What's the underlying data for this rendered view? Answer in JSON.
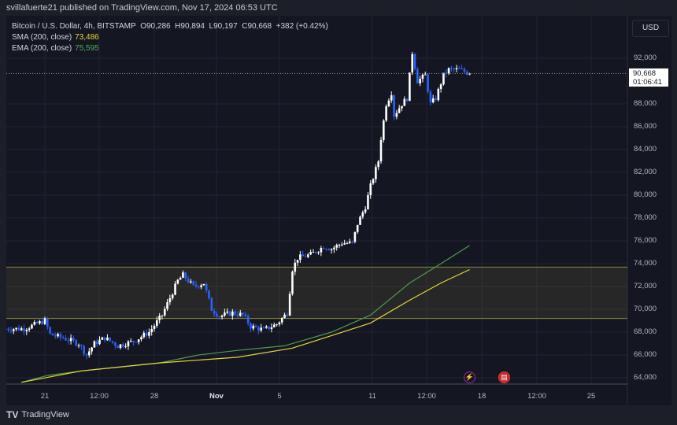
{
  "published": "svillafuerte21 published on TradingView.com, Nov 17, 2024 06:53 UTC",
  "legend": {
    "symbol": "Bitcoin / U.S. Dollar, 4h, BITSTAMP",
    "open": "O90,286",
    "high": "H90,894",
    "low": "L90,197",
    "close": "C90,668",
    "change": "+382 (+0.42%)",
    "sma_label": "SMA (200, close)",
    "sma_value": "73,486",
    "ema_label": "EMA (200, close)",
    "ema_value": "75,595"
  },
  "currency": "USD",
  "last_price": {
    "value": "90,668",
    "countdown": "01:06:41"
  },
  "y_ticks": [
    "92,000",
    "88,000",
    "86,000",
    "84,000",
    "82,000",
    "80,000",
    "78,000",
    "76,000",
    "74,000",
    "72,000",
    "70,000",
    "68,000",
    "66,000",
    "64,000"
  ],
  "x_ticks": [
    "21",
    "12:00",
    "28",
    "Nov",
    "5",
    "11",
    "12:00",
    "18",
    "12:00",
    "25"
  ],
  "brand": "TradingView",
  "colors": {
    "up": "#ffffff",
    "down": "#2962ff",
    "sma": "#e6d63b",
    "ema": "#4f9a4f",
    "zone": "#8c8a3c",
    "background": "#141722"
  },
  "events": [
    {
      "icon": "lightning-icon",
      "color": "#9c27b0"
    },
    {
      "icon": "us-flag-icon",
      "color": "#e53935"
    }
  ],
  "chart_data": {
    "type": "candlestick",
    "interval": "4h",
    "ylim": [
      63500,
      94000
    ],
    "price_path": [
      [
        "2024-10-18T12:00",
        68300
      ],
      [
        "2024-10-19T16:00",
        68300
      ],
      [
        "2024-10-21T00:00",
        69000
      ],
      [
        "2024-10-21T08:00",
        67800
      ],
      [
        "2024-10-22T04:00",
        67500
      ],
      [
        "2024-10-23T04:00",
        67000
      ],
      [
        "2024-10-23T16:00",
        66000
      ],
      [
        "2024-10-24T04:00",
        67000
      ],
      [
        "2024-10-24T20:00",
        67500
      ],
      [
        "2024-10-25T16:00",
        66800
      ],
      [
        "2024-10-26T16:00",
        67200
      ],
      [
        "2024-10-27T16:00",
        68000
      ],
      [
        "2024-10-28T12:00",
        69500
      ],
      [
        "2024-10-29T00:00",
        71000
      ],
      [
        "2024-10-29T12:00",
        72500
      ],
      [
        "2024-10-29T20:00",
        73000
      ],
      [
        "2024-10-30T12:00",
        72000
      ],
      [
        "2024-10-31T04:00",
        72300
      ],
      [
        "2024-10-31T16:00",
        70000
      ],
      [
        "2024-11-01T04:00",
        69400
      ],
      [
        "2024-11-02T00:00",
        69700
      ],
      [
        "2024-11-02T16:00",
        69500
      ],
      [
        "2024-11-03T04:00",
        68500
      ],
      [
        "2024-11-04T00:00",
        68200
      ],
      [
        "2024-11-04T20:00",
        68700
      ],
      [
        "2024-11-05T12:00",
        69700
      ],
      [
        "2024-11-05T20:00",
        73500
      ],
      [
        "2024-11-06T04:00",
        74500
      ],
      [
        "2024-11-07T00:00",
        74800
      ],
      [
        "2024-11-07T20:00",
        75500
      ],
      [
        "2024-11-08T08:00",
        75300
      ],
      [
        "2024-11-09T00:00",
        75800
      ],
      [
        "2024-11-09T16:00",
        75800
      ],
      [
        "2024-11-10T00:00",
        77500
      ],
      [
        "2024-11-10T12:00",
        79000
      ],
      [
        "2024-11-10T20:00",
        80800
      ],
      [
        "2024-11-11T08:00",
        83000
      ],
      [
        "2024-11-11T12:00",
        85000
      ],
      [
        "2024-11-11T20:00",
        88000
      ],
      [
        "2024-11-12T04:00",
        89000
      ],
      [
        "2024-11-12T08:00",
        87000
      ],
      [
        "2024-11-12T20:00",
        88000
      ],
      [
        "2024-11-13T04:00",
        88500
      ],
      [
        "2024-11-13T12:00",
        92500
      ],
      [
        "2024-11-13T20:00",
        90000
      ],
      [
        "2024-11-14T08:00",
        90500
      ],
      [
        "2024-11-14T16:00",
        88000
      ],
      [
        "2024-11-15T00:00",
        88500
      ],
      [
        "2024-11-15T12:00",
        90500
      ],
      [
        "2024-11-15T20:00",
        91000
      ],
      [
        "2024-11-16T12:00",
        91000
      ],
      [
        "2024-11-17T04:00",
        90668
      ]
    ],
    "sma_200": [
      [
        "2024-10-19T12:00",
        63600
      ],
      [
        "2024-10-23T08:00",
        64600
      ],
      [
        "2024-10-28T08:00",
        65300
      ],
      [
        "2024-11-02T08:00",
        65800
      ],
      [
        "2024-11-05T20:00",
        66600
      ],
      [
        "2024-11-08T08:00",
        67700
      ],
      [
        "2024-11-10T20:00",
        68800
      ],
      [
        "2024-11-13T08:00",
        70800
      ],
      [
        "2024-11-15T08:00",
        72300
      ],
      [
        "2024-11-17T04:00",
        73486
      ]
    ],
    "ema_200": [
      [
        "2024-10-19T12:00",
        63600
      ],
      [
        "2024-10-21T04:00",
        64200
      ],
      [
        "2024-10-23T08:00",
        64600
      ],
      [
        "2024-10-28T08:00",
        65300
      ],
      [
        "2024-10-30T20:00",
        66000
      ],
      [
        "2024-11-02T08:00",
        66400
      ],
      [
        "2024-11-05T08:00",
        66800
      ],
      [
        "2024-11-08T08:00",
        68000
      ],
      [
        "2024-11-10T20:00",
        69500
      ],
      [
        "2024-11-13T08:00",
        72300
      ],
      [
        "2024-11-15T08:00",
        74000
      ],
      [
        "2024-11-17T04:00",
        75595
      ]
    ],
    "zone": [
      69200,
      73700
    ]
  }
}
